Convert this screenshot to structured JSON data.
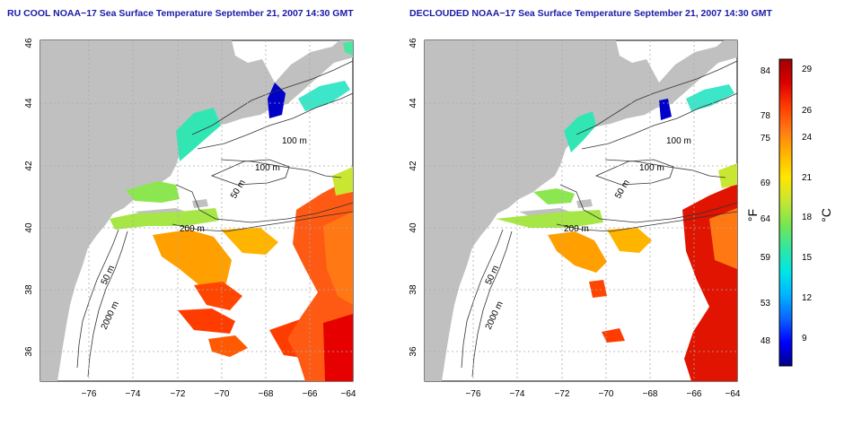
{
  "titles": {
    "left": "RU COOL NOAA−17 Sea Surface Temperature September 21, 2007 14:30 GMT",
    "right": "DECLOUDED NOAA−17 Sea Surface Temperature September 21, 2007 14:30 GMT"
  },
  "axes": {
    "lon_ticks": [
      "−76",
      "−74",
      "−72",
      "−70",
      "−68",
      "−66",
      "−64"
    ],
    "lat_ticks": [
      "36",
      "38",
      "40",
      "42",
      "44",
      "46"
    ]
  },
  "contour_labels": [
    "100 m",
    "100 m",
    "50 m",
    "200 m",
    "50 m",
    "2000 m"
  ],
  "colorbar": {
    "fahrenheit_ticks": [
      "84",
      "78",
      "75",
      "69",
      "64",
      "59",
      "53",
      "48"
    ],
    "celsius_ticks": [
      "29",
      "26",
      "24",
      "21",
      "18",
      "15",
      "12",
      "9"
    ],
    "fahrenheit_unit": "°F",
    "celsius_unit": "°C",
    "colors": [
      "#00008b",
      "#0000ff",
      "#0a64ff",
      "#00b4ff",
      "#00e6e6",
      "#32e6a0",
      "#78e650",
      "#c8e632",
      "#ffe600",
      "#ffb400",
      "#ff7814",
      "#ff3c00",
      "#dc0000",
      "#a00000"
    ]
  },
  "colors": {
    "land": "#c0c0c0",
    "water": "#ffffff",
    "title": "#1a1aa6"
  }
}
